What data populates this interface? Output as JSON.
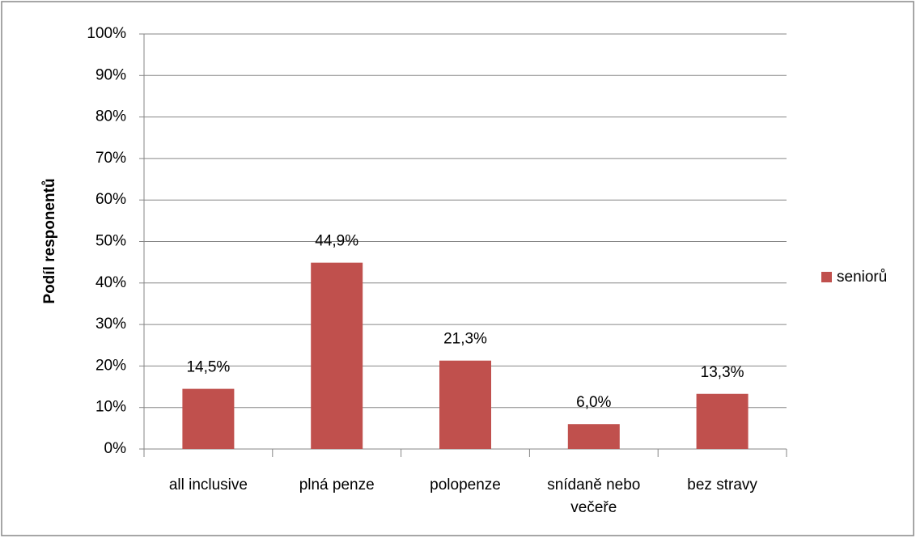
{
  "chart_data": {
    "type": "bar",
    "y_axis_label": "Podíl responentů",
    "categories": [
      "all inclusive",
      "plná penze",
      "polopenze",
      "snídaně nebo večeře",
      "bez stravy"
    ],
    "series": [
      {
        "name": "seniorů",
        "color": "#c0504d",
        "values": [
          14.5,
          44.9,
          21.3,
          6.0,
          13.3
        ],
        "value_labels": [
          "14,5%",
          "44,9%",
          "21,3%",
          "6,0%",
          "13,3%"
        ]
      }
    ],
    "ylim": [
      0,
      100
    ],
    "yticks": [
      {
        "value": 0,
        "label": "0%"
      },
      {
        "value": 10,
        "label": "10%"
      },
      {
        "value": 20,
        "label": "20%"
      },
      {
        "value": 30,
        "label": "30%"
      },
      {
        "value": 40,
        "label": "40%"
      },
      {
        "value": 50,
        "label": "50%"
      },
      {
        "value": 60,
        "label": "60%"
      },
      {
        "value": 70,
        "label": "70%"
      },
      {
        "value": 80,
        "label": "80%"
      },
      {
        "value": 90,
        "label": "90%"
      },
      {
        "value": 100,
        "label": "100%"
      }
    ],
    "grid": true,
    "legend": "right"
  }
}
